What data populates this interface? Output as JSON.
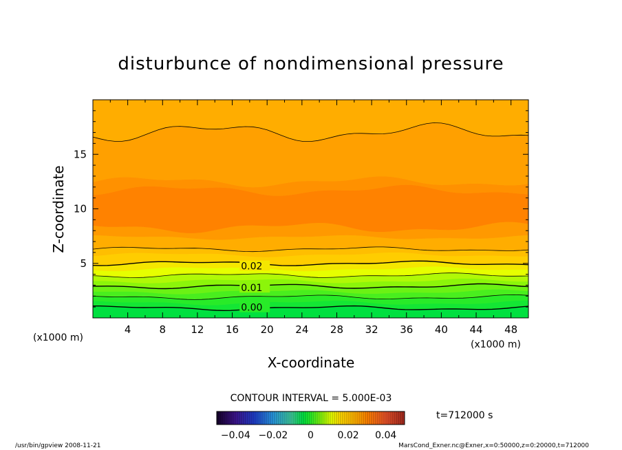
{
  "chart_data": {
    "type": "heatmap",
    "title": "disturbunce of nondimensional pressure",
    "xlabel": "X-coordinate",
    "ylabel": "Z-coordinate",
    "x_unit_left": "(x1000 m)",
    "x_unit_right": "(x1000 m)",
    "xlim": [
      0,
      50
    ],
    "ylim": [
      0,
      20
    ],
    "x_ticks": [
      4,
      8,
      12,
      16,
      20,
      24,
      28,
      32,
      36,
      40,
      44,
      48
    ],
    "y_ticks": [
      5,
      10,
      15
    ],
    "bands": [
      {
        "z0": 0,
        "z1": 0.9,
        "value": -0.004
      },
      {
        "z0": 0.9,
        "z1": 1.4,
        "value": -0.002
      },
      {
        "z0": 1.4,
        "z1": 1.9,
        "value": 0.0
      },
      {
        "z0": 1.9,
        "z1": 2.4,
        "value": 0.002
      },
      {
        "z0": 2.4,
        "z1": 2.9,
        "value": 0.004
      },
      {
        "z0": 2.9,
        "z1": 3.4,
        "value": 0.006
      },
      {
        "z0": 3.4,
        "z1": 3.9,
        "value": 0.008
      },
      {
        "z0": 3.9,
        "z1": 4.5,
        "value": 0.011
      },
      {
        "z0": 4.5,
        "z1": 5.0,
        "value": 0.014
      },
      {
        "z0": 5.0,
        "z1": 5.8,
        "value": 0.018
      },
      {
        "z0": 5.8,
        "z1": 6.3,
        "value": 0.021
      },
      {
        "z0": 6.3,
        "z1": 7.4,
        "value": 0.024
      },
      {
        "z0": 7.4,
        "z1": 8.3,
        "value": 0.027
      },
      {
        "z0": 8.3,
        "z1": 11.7,
        "value": 0.03
      },
      {
        "z0": 11.7,
        "z1": 12.5,
        "value": 0.028
      },
      {
        "z0": 12.5,
        "z1": 17.0,
        "value": 0.026
      },
      {
        "z0": 17.0,
        "z1": 20.0,
        "value": 0.024
      }
    ],
    "contour_labels": [
      {
        "text": "0.02",
        "x": 17,
        "z": 4.7
      },
      {
        "text": "0.01",
        "x": 17,
        "z": 2.7
      },
      {
        "text": "0.00",
        "x": 17,
        "z": 0.9
      }
    ],
    "contour_interval_text": "CONTOUR INTERVAL = 5.000E-03",
    "colorbar": {
      "range": [
        -0.05,
        0.05
      ],
      "tick_values": [
        -0.04,
        -0.02,
        0,
        0.02,
        0.04
      ],
      "tick_labels": [
        "−0.04",
        "−0.02",
        "0",
        "0.02",
        "0.04"
      ]
    },
    "time_label": "t=712000 s",
    "colors": {
      "background": "#ffffff",
      "axis": "#000000",
      "low": "#00e040",
      "mid": "#ffff00",
      "high": "#ff7000"
    }
  },
  "footer": {
    "left": "/usr/bin/gpview   2008-11-21",
    "right": "MarsCond_Exner.nc@Exner,x=0:50000,z=0:20000,t=712000"
  }
}
